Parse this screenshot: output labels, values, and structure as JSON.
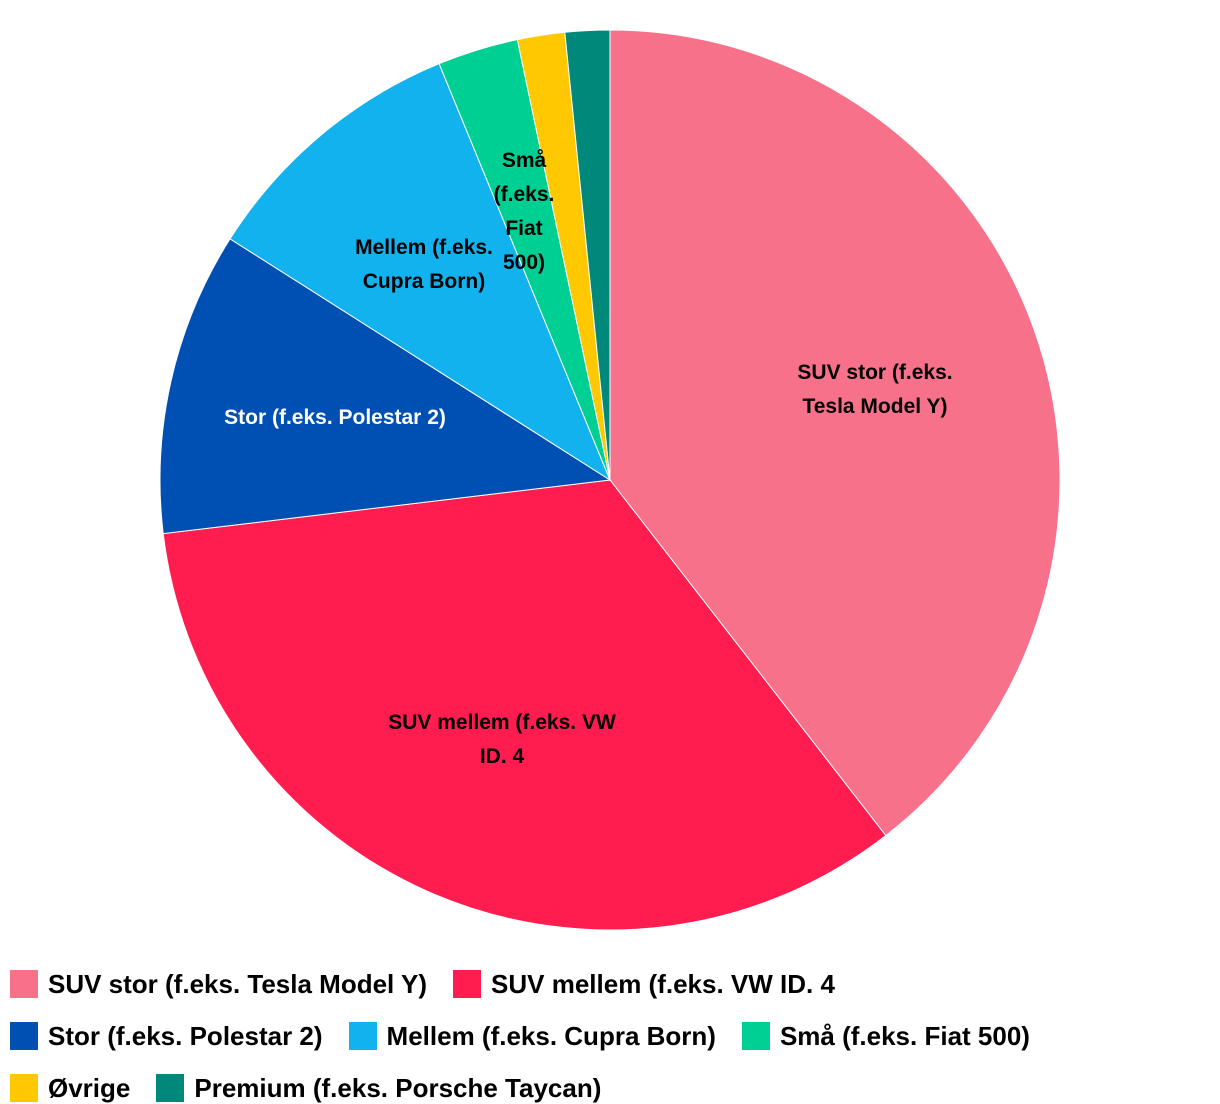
{
  "chart_data": {
    "type": "pie",
    "categories": [
      "SUV stor (f.eks. Tesla Model Y)",
      "SUV mellem (f.eks. VW ID. 4",
      "Stor (f.eks. Polestar 2)",
      "Mellem (f.eks. Cupra Born)",
      "Små (f.eks. Fiat 500)",
      "Øvrige",
      "Premium (f.eks. Porsche Taycan)"
    ],
    "values": [
      39.5,
      33.6,
      10.9,
      9.8,
      2.9,
      1.7,
      1.6
    ],
    "colors": [
      "#f7718b",
      "#ff1c4f",
      "#0050b3",
      "#12b2ee",
      "#00cf94",
      "#ffc800",
      "#00897b"
    ],
    "legend": "bottom"
  }
}
